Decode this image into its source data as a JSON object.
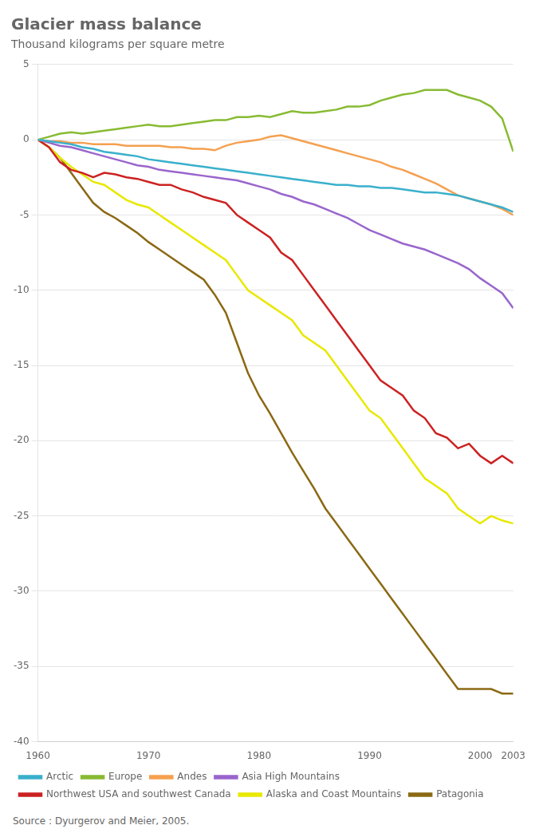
{
  "chart_data": {
    "type": "line",
    "title": "Glacier mass balance",
    "subtitle": "Thousand kilograms per square metre",
    "source": "Source : Dyurgerov and Meier, 2005.",
    "x": [
      1960,
      1961,
      1962,
      1963,
      1964,
      1965,
      1966,
      1967,
      1968,
      1969,
      1970,
      1971,
      1972,
      1973,
      1974,
      1975,
      1976,
      1977,
      1978,
      1979,
      1980,
      1981,
      1982,
      1983,
      1984,
      1985,
      1986,
      1987,
      1988,
      1989,
      1990,
      1991,
      1992,
      1993,
      1994,
      1995,
      1996,
      1997,
      1998,
      1999,
      2000,
      2001,
      2002,
      2003
    ],
    "series": [
      {
        "name": "Arctic",
        "color": "#3ab0cc",
        "values": [
          0,
          -0.1,
          -0.2,
          -0.3,
          -0.5,
          -0.6,
          -0.8,
          -0.9,
          -1.0,
          -1.1,
          -1.3,
          -1.4,
          -1.5,
          -1.6,
          -1.7,
          -1.8,
          -1.9,
          -2.0,
          -2.1,
          -2.2,
          -2.3,
          -2.4,
          -2.5,
          -2.6,
          -2.7,
          -2.8,
          -2.9,
          -3.0,
          -3.0,
          -3.1,
          -3.1,
          -3.2,
          -3.2,
          -3.3,
          -3.4,
          -3.5,
          -3.5,
          -3.6,
          -3.7,
          -3.9,
          -4.1,
          -4.3,
          -4.5,
          -4.8
        ]
      },
      {
        "name": "Europe",
        "color": "#88bb33",
        "values": [
          0,
          0.2,
          0.4,
          0.5,
          0.4,
          0.5,
          0.6,
          0.7,
          0.8,
          0.9,
          1.0,
          0.9,
          0.9,
          1.0,
          1.1,
          1.2,
          1.3,
          1.3,
          1.5,
          1.5,
          1.6,
          1.5,
          1.7,
          1.9,
          1.8,
          1.8,
          1.9,
          2.0,
          2.2,
          2.2,
          2.3,
          2.6,
          2.8,
          3.0,
          3.1,
          3.3,
          3.3,
          3.3,
          3.0,
          2.8,
          2.6,
          2.2,
          1.4,
          -0.8
        ]
      },
      {
        "name": "Andes",
        "color": "#f5a050",
        "values": [
          0,
          -0.1,
          -0.1,
          -0.2,
          -0.2,
          -0.3,
          -0.3,
          -0.3,
          -0.4,
          -0.4,
          -0.4,
          -0.4,
          -0.5,
          -0.5,
          -0.6,
          -0.6,
          -0.7,
          -0.4,
          -0.2,
          -0.1,
          0.0,
          0.2,
          0.3,
          0.1,
          -0.1,
          -0.3,
          -0.5,
          -0.7,
          -0.9,
          -1.1,
          -1.3,
          -1.5,
          -1.8,
          -2.0,
          -2.3,
          -2.6,
          -2.9,
          -3.3,
          -3.7,
          -3.9,
          -4.1,
          -4.3,
          -4.6,
          -5.0
        ]
      },
      {
        "name": "Asia High Mountains",
        "color": "#9966cc",
        "values": [
          0,
          -0.2,
          -0.4,
          -0.5,
          -0.7,
          -0.9,
          -1.1,
          -1.3,
          -1.5,
          -1.7,
          -1.8,
          -2.0,
          -2.1,
          -2.2,
          -2.3,
          -2.4,
          -2.5,
          -2.6,
          -2.7,
          -2.9,
          -3.1,
          -3.3,
          -3.6,
          -3.8,
          -4.1,
          -4.3,
          -4.6,
          -4.9,
          -5.2,
          -5.6,
          -6.0,
          -6.3,
          -6.6,
          -6.9,
          -7.1,
          -7.3,
          -7.6,
          -7.9,
          -8.2,
          -8.6,
          -9.2,
          -9.7,
          -10.2,
          -11.2
        ]
      },
      {
        "name": "Northwest USA and southwest Canada",
        "color": "#cc2222",
        "values": [
          0,
          -0.5,
          -1.5,
          -2.0,
          -2.2,
          -2.5,
          -2.2,
          -2.3,
          -2.5,
          -2.6,
          -2.8,
          -3.0,
          -3.0,
          -3.3,
          -3.5,
          -3.8,
          -4.0,
          -4.2,
          -5.0,
          -5.5,
          -6.0,
          -6.5,
          -7.5,
          -8.0,
          -9.0,
          -10.0,
          -11.0,
          -12.0,
          -13.0,
          -14.0,
          -15.0,
          -16.0,
          -16.5,
          -17.0,
          -18.0,
          -18.5,
          -19.5,
          -19.8,
          -20.5,
          -20.2,
          -21.0,
          -21.5,
          -21.0,
          -21.5
        ]
      },
      {
        "name": "Alaska and Coast Mountains",
        "color": "#e8e800",
        "values": [
          0,
          -0.5,
          -1.2,
          -1.8,
          -2.3,
          -2.8,
          -3.0,
          -3.5,
          -4.0,
          -4.3,
          -4.5,
          -5.0,
          -5.5,
          -6.0,
          -6.5,
          -7.0,
          -7.5,
          -8.0,
          -9.0,
          -10.0,
          -10.5,
          -11.0,
          -11.5,
          -12.0,
          -13.0,
          -13.5,
          -14.0,
          -15.0,
          -16.0,
          -17.0,
          -18.0,
          -18.5,
          -19.5,
          -20.5,
          -21.5,
          -22.5,
          -23.0,
          -23.5,
          -24.5,
          -25.0,
          -25.5,
          -25.0,
          -25.3,
          -25.5
        ]
      },
      {
        "name": "Patagonia",
        "color": "#8B6914",
        "values": [
          0,
          -0.5,
          -1.2,
          -2.2,
          -3.2,
          -4.2,
          -4.8,
          -5.2,
          -5.7,
          -6.2,
          -6.8,
          -7.3,
          -7.8,
          -8.3,
          -8.8,
          -9.3,
          -10.3,
          -11.5,
          -13.5,
          -15.5,
          -17.0,
          -18.2,
          -19.5,
          -20.8,
          -22.0,
          -23.2,
          -24.5,
          -25.5,
          -26.5,
          -27.5,
          -28.5,
          -29.5,
          -30.5,
          -31.5,
          -32.5,
          -33.5,
          -34.5,
          -35.5,
          -36.5,
          -36.5,
          -36.5,
          -36.5,
          -36.8,
          -36.8
        ]
      }
    ],
    "xlim": [
      1960,
      2003
    ],
    "xticks": [
      1960,
      1970,
      1980,
      1990,
      2000,
      2003
    ],
    "ylim": [
      -40,
      5
    ],
    "yticks": [
      5,
      0,
      -5,
      -10,
      -15,
      -20,
      -25,
      -30,
      -35,
      -40
    ],
    "grid": "y",
    "legend": "bottom"
  }
}
